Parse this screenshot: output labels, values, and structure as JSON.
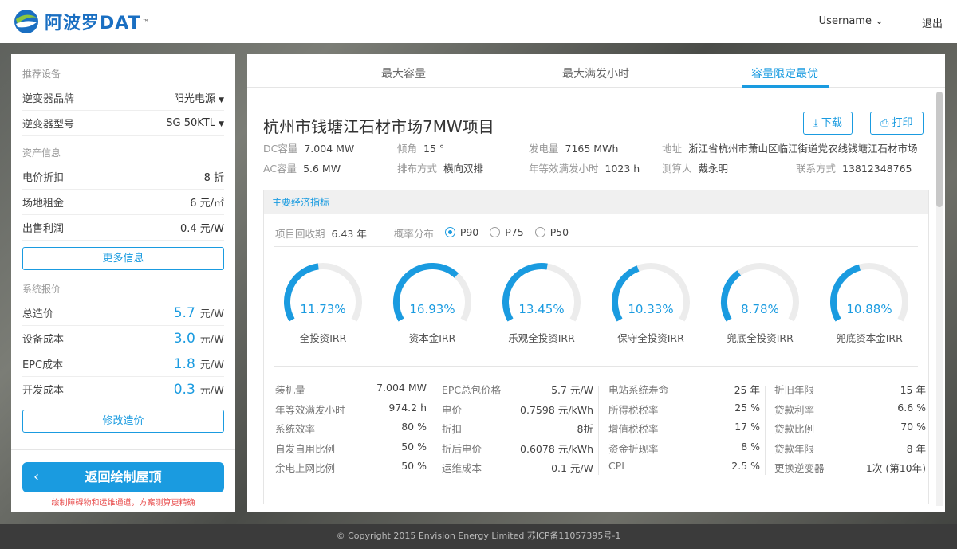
{
  "header": {
    "logo_text": "阿波罗DAT",
    "tm": "™",
    "username": "Username",
    "logout": "退出"
  },
  "left": {
    "sec_equipment": "推荐设备",
    "inverter_brand": {
      "label": "逆变器品牌",
      "value": "阳光电源"
    },
    "inverter_model": {
      "label": "逆变器型号",
      "value": "SG 50KTL"
    },
    "sec_asset": "资产信息",
    "assets": [
      {
        "label": "电价折扣",
        "value": "8 折"
      },
      {
        "label": "场地租金",
        "value": "6 元/㎡"
      },
      {
        "label": "出售利润",
        "value": "0.4 元/W"
      }
    ],
    "more_info": "更多信息",
    "sec_price": "系统报价",
    "prices": [
      {
        "label": "总造价",
        "value": "5.7",
        "unit": "元/W"
      },
      {
        "label": "设备成本",
        "value": "3.0",
        "unit": "元/W"
      },
      {
        "label": "EPC成本",
        "value": "1.8",
        "unit": "元/W"
      },
      {
        "label": "开发成本",
        "value": "0.3",
        "unit": "元/W"
      }
    ],
    "modify_price": "修改造价",
    "back_button": "返回绘制屋顶",
    "warning": "绘制障碍物和运维通道，方案测算更精确"
  },
  "tabs": [
    "最大容量",
    "最大满发小时",
    "容量限定最优"
  ],
  "active_tab": 2,
  "project": {
    "title": "杭州市钱塘江石材市场7MW项目",
    "download": "下载",
    "print": "打印",
    "info": [
      {
        "label": "DC容量",
        "value": "7.004 MW"
      },
      {
        "label": "倾角",
        "value": "15 °"
      },
      {
        "label": "发电量",
        "value": "7165 MWh"
      },
      {
        "label": "地址",
        "value": "浙江省杭州市萧山区临江街道党农线钱塘江石材市场"
      },
      {
        "label": "AC容量",
        "value": "5.6 MW"
      },
      {
        "label": "排布方式",
        "value": "横向双排"
      },
      {
        "label": "年等效满发小时",
        "value": "1023 h"
      },
      {
        "label": "测算人",
        "value": "戴永明"
      },
      {
        "label": "联系方式",
        "value": "13812348765"
      }
    ]
  },
  "economics": {
    "title": "主要经济指标",
    "payback_label": "项目回收期",
    "payback_value": "6.43 年",
    "prob_label": "概率分布",
    "prob_options": [
      "P90",
      "P75",
      "P50"
    ],
    "prob_selected": 0,
    "gauges": [
      {
        "value": "11.73%",
        "label": "全投资IRR",
        "pct": 11.73
      },
      {
        "value": "16.93%",
        "label": "资本金IRR",
        "pct": 16.93
      },
      {
        "value": "13.45%",
        "label": "乐观全投资IRR",
        "pct": 13.45
      },
      {
        "value": "10.33%",
        "label": "保守全投资IRR",
        "pct": 10.33
      },
      {
        "value": "8.78%",
        "label": "兜底全投资IRR",
        "pct": 8.78
      },
      {
        "value": "10.88%",
        "label": "兜底资本金IRR",
        "pct": 10.88
      }
    ],
    "gauge_color": "#1a9be0",
    "params": [
      [
        {
          "k": "装机量",
          "v": "7.004 MW"
        },
        {
          "k": "年等效满发小时",
          "v": "974.2 h"
        },
        {
          "k": "系统效率",
          "v": "80 %"
        },
        {
          "k": "自发自用比例",
          "v": "50 %"
        },
        {
          "k": "余电上网比例",
          "v": "50 %"
        }
      ],
      [
        {
          "k": "EPC总包价格",
          "v": "5.7 元/W"
        },
        {
          "k": "电价",
          "v": "0.7598 元/kWh"
        },
        {
          "k": "折扣",
          "v": "8折"
        },
        {
          "k": "折后电价",
          "v": "0.6078 元/kWh"
        },
        {
          "k": "运维成本",
          "v": "0.1 元/W"
        }
      ],
      [
        {
          "k": "电站系统寿命",
          "v": "25 年"
        },
        {
          "k": "所得税税率",
          "v": "25 %"
        },
        {
          "k": "增值税税率",
          "v": "17 %"
        },
        {
          "k": "资金折现率",
          "v": "8 %"
        },
        {
          "k": "CPI",
          "v": "2.5 %"
        }
      ],
      [
        {
          "k": "折旧年限",
          "v": "15 年"
        },
        {
          "k": "贷款利率",
          "v": "6.6 %"
        },
        {
          "k": "贷款比例",
          "v": "70 %"
        },
        {
          "k": "贷款年限",
          "v": "8 年"
        },
        {
          "k": "更换逆变器",
          "v": "1次 (第10年)"
        }
      ]
    ]
  },
  "footer": "© Copyright 2015 Envision Energy Limited 苏ICP备11057395号-1"
}
